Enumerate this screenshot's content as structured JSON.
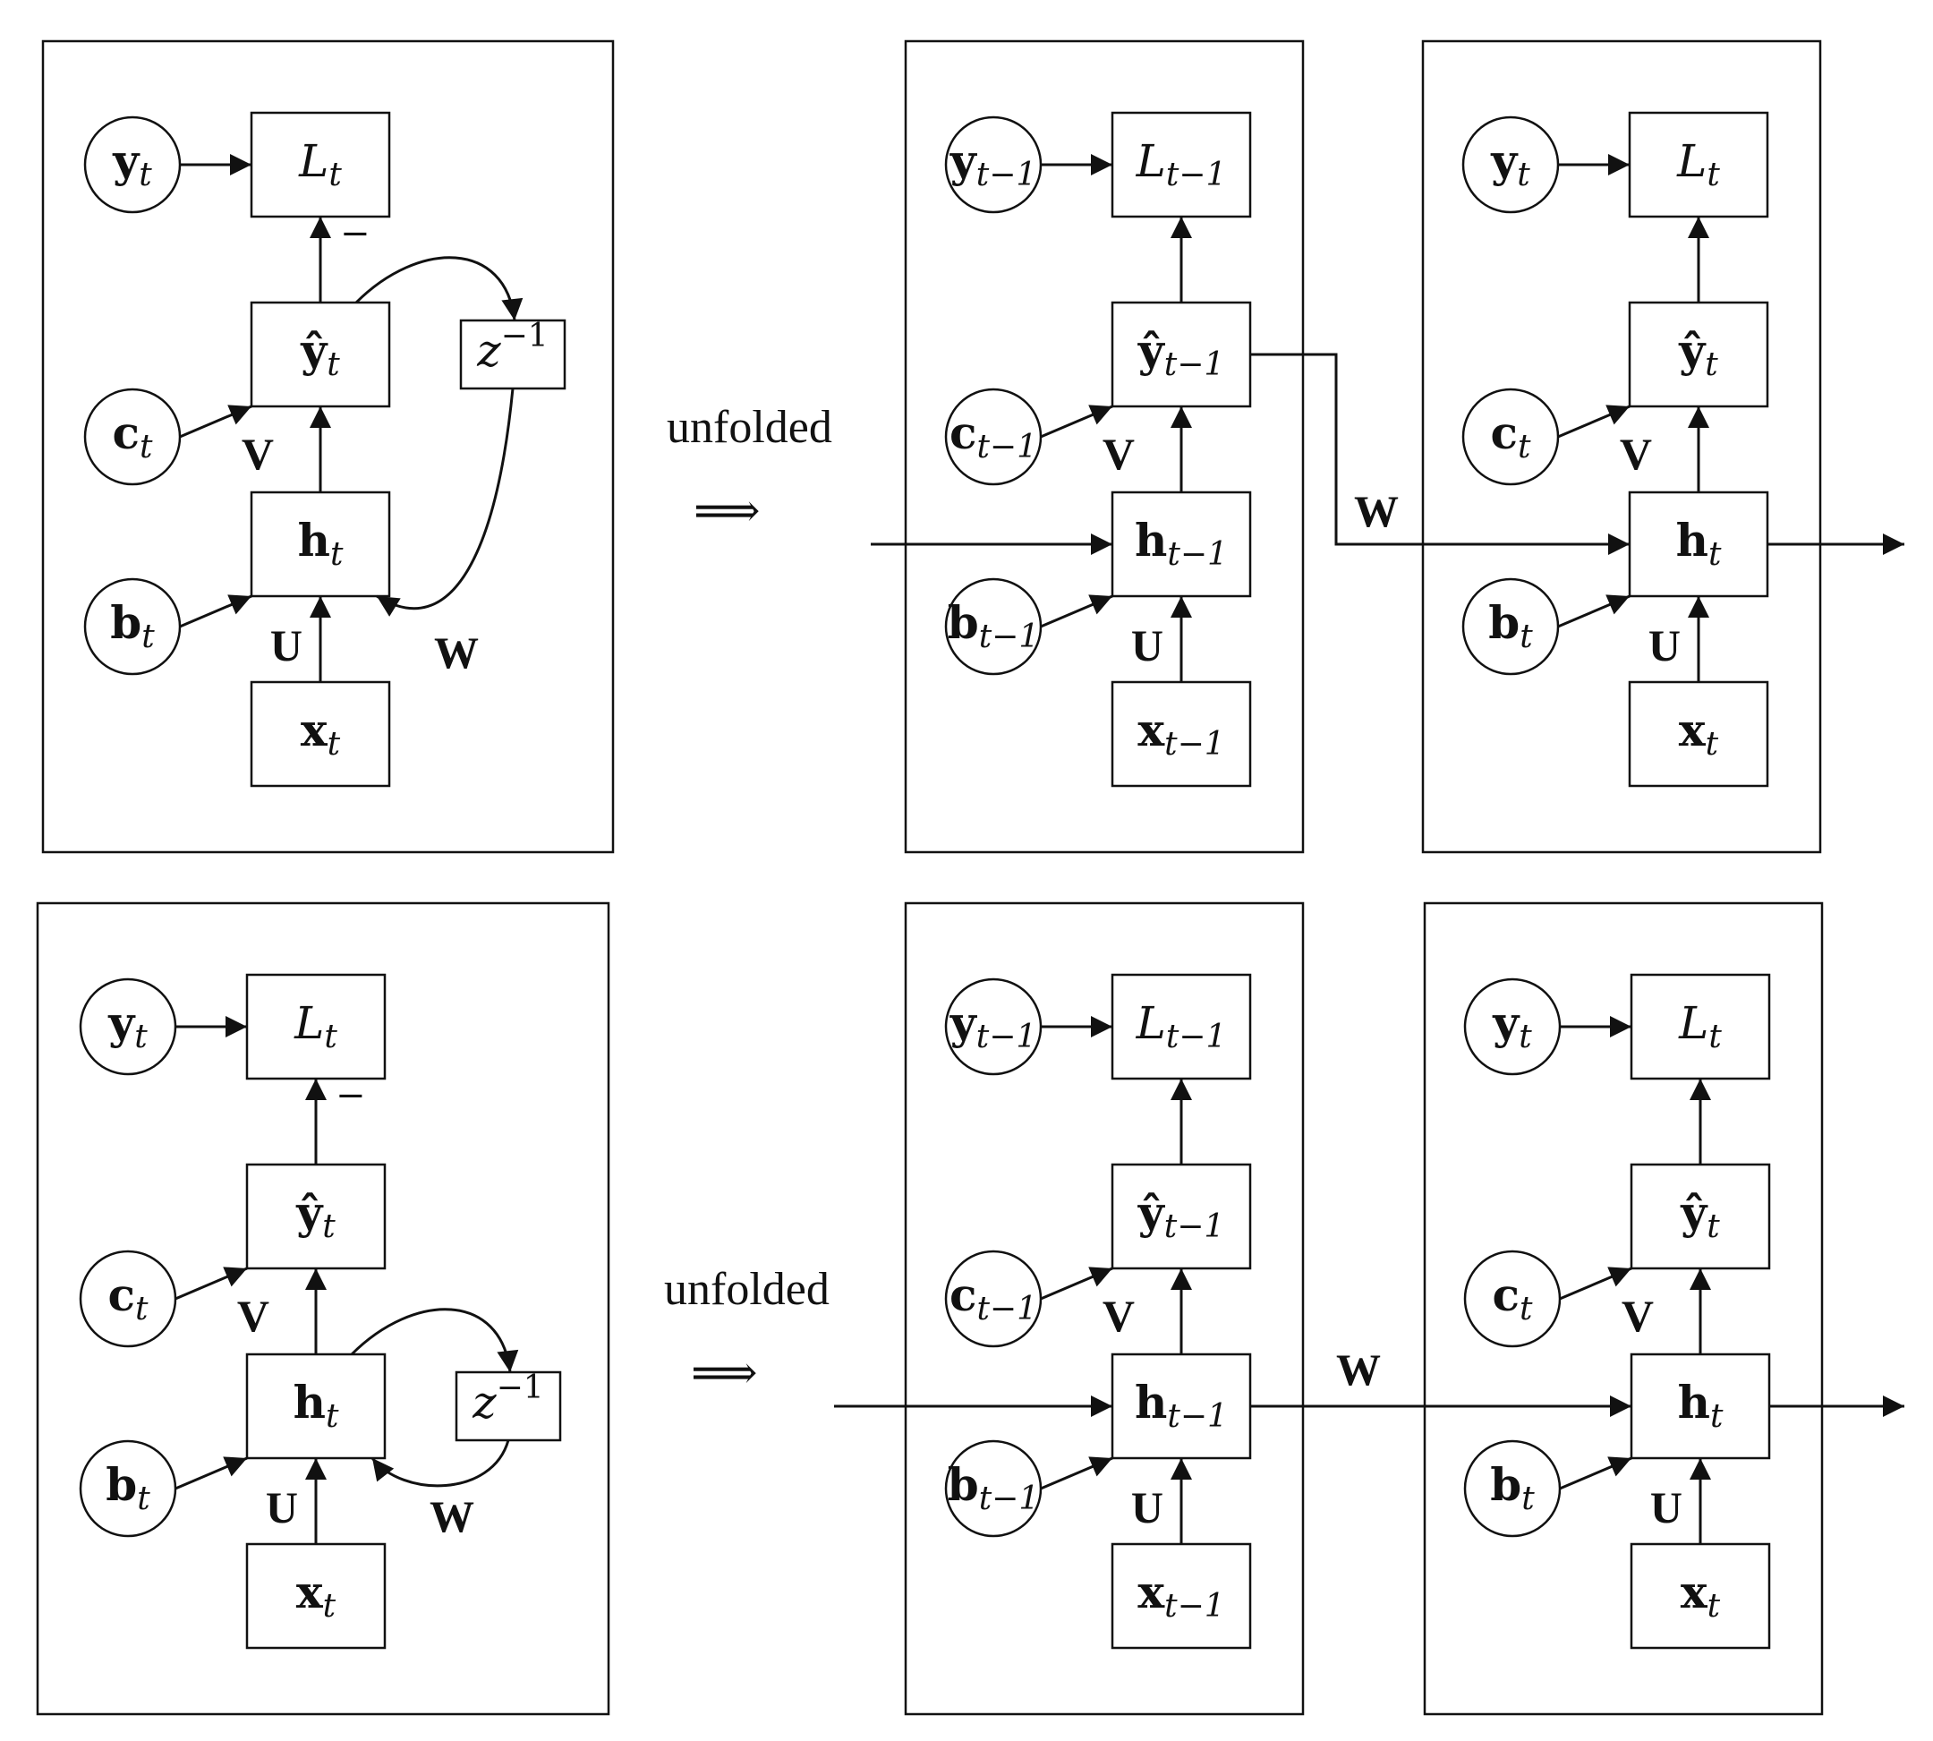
{
  "diagrams": [
    {
      "name": "top",
      "folded": {
        "y": {
          "main": "y",
          "sub": "t"
        },
        "L": {
          "main": "L",
          "sub": "t"
        },
        "yhat": {
          "main": "ŷ",
          "sub": "t"
        },
        "c": {
          "main": "c",
          "sub": "t"
        },
        "h": {
          "main": "h",
          "sub": "t"
        },
        "b": {
          "main": "b",
          "sub": "t"
        },
        "x": {
          "main": "x",
          "sub": "t"
        },
        "delay": {
          "main": "z",
          "sup": "−1"
        },
        "minus": "−",
        "V": "V",
        "U": "U",
        "W": "W"
      },
      "unfold_label": "unfolded",
      "unfold_arrow": "⟹",
      "prev": {
        "y": {
          "main": "y",
          "sub": "t−1"
        },
        "L": {
          "main": "L",
          "sub": "t−1"
        },
        "yhat": {
          "main": "ŷ",
          "sub": "t−1"
        },
        "c": {
          "main": "c",
          "sub": "t−1"
        },
        "h": {
          "main": "h",
          "sub": "t−1"
        },
        "b": {
          "main": "b",
          "sub": "t−1"
        },
        "x": {
          "main": "x",
          "sub": "t−1"
        },
        "V": "V",
        "U": "U"
      },
      "curr": {
        "y": {
          "main": "y",
          "sub": "t"
        },
        "L": {
          "main": "L",
          "sub": "t"
        },
        "yhat": {
          "main": "ŷ",
          "sub": "t"
        },
        "c": {
          "main": "c",
          "sub": "t"
        },
        "h": {
          "main": "h",
          "sub": "t"
        },
        "b": {
          "main": "b",
          "sub": "t"
        },
        "x": {
          "main": "x",
          "sub": "t"
        },
        "V": "V",
        "U": "U"
      },
      "W_between": "W",
      "recurrence_from": "output"
    },
    {
      "name": "bottom",
      "folded": {
        "y": {
          "main": "y",
          "sub": "t"
        },
        "L": {
          "main": "L",
          "sub": "t"
        },
        "yhat": {
          "main": "ŷ",
          "sub": "t"
        },
        "c": {
          "main": "c",
          "sub": "t"
        },
        "h": {
          "main": "h",
          "sub": "t"
        },
        "b": {
          "main": "b",
          "sub": "t"
        },
        "x": {
          "main": "x",
          "sub": "t"
        },
        "delay": {
          "main": "z",
          "sup": "−1"
        },
        "minus": "−",
        "V": "V",
        "U": "U",
        "W": "W"
      },
      "unfold_label": "unfolded",
      "unfold_arrow": "⟹",
      "prev": {
        "y": {
          "main": "y",
          "sub": "t−1"
        },
        "L": {
          "main": "L",
          "sub": "t−1"
        },
        "yhat": {
          "main": "ŷ",
          "sub": "t−1"
        },
        "c": {
          "main": "c",
          "sub": "t−1"
        },
        "h": {
          "main": "h",
          "sub": "t−1"
        },
        "b": {
          "main": "b",
          "sub": "t−1"
        },
        "x": {
          "main": "x",
          "sub": "t−1"
        },
        "V": "V",
        "U": "U"
      },
      "curr": {
        "y": {
          "main": "y",
          "sub": "t"
        },
        "L": {
          "main": "L",
          "sub": "t"
        },
        "yhat": {
          "main": "ŷ",
          "sub": "t"
        },
        "c": {
          "main": "c",
          "sub": "t"
        },
        "h": {
          "main": "h",
          "sub": "t"
        },
        "b": {
          "main": "b",
          "sub": "t"
        },
        "x": {
          "main": "x",
          "sub": "t"
        },
        "V": "V",
        "U": "U"
      },
      "W_between": "W",
      "recurrence_from": "hidden"
    }
  ]
}
